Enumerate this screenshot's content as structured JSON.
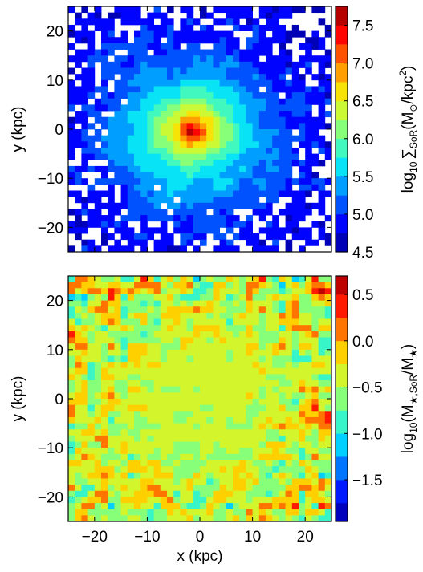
{
  "chart_data": [
    {
      "type": "heatmap",
      "panel": "top",
      "title": "",
      "xlabel": "",
      "ylabel": "y (kpc)",
      "xlim": [
        -25,
        25
      ],
      "ylim": [
        -25,
        25
      ],
      "xticks": [
        -20,
        -10,
        0,
        10,
        20
      ],
      "yticks": [
        -20,
        -10,
        0,
        10,
        20
      ],
      "ytick_labels": [
        "−20",
        "−10",
        "0",
        "10",
        "20"
      ],
      "grid": false,
      "field": {
        "description_values": "log10 surface density peak at center decreasing outward",
        "center": [
          -1.5,
          -0.5
        ],
        "peak_value": 7.7,
        "falloff_scale_kpc": 14,
        "floor_value": 4.6,
        "blank_below": 4.5
      },
      "colorbar": {
        "label_prefix": "log",
        "label_sub": "10",
        "label_sigma": "∑",
        "label_sigma_sub": "SoR",
        "label_units_open": "(M",
        "label_units_sun": "⊙",
        "label_units_mid": "/kpc",
        "label_units_sup": "2",
        "label_units_close": ")",
        "min": 4.5,
        "max": 7.75,
        "levels": [
          4.5,
          4.75,
          5.0,
          5.25,
          5.5,
          5.75,
          6.0,
          6.25,
          6.5,
          6.75,
          7.0,
          7.25,
          7.5,
          7.75
        ],
        "ticks": [
          4.5,
          5.0,
          5.5,
          6.0,
          6.5,
          7.0,
          7.5
        ],
        "tick_labels": [
          "4.5",
          "5.0",
          "5.5",
          "6.0",
          "6.5",
          "7.0",
          "7.5"
        ]
      }
    },
    {
      "type": "heatmap",
      "panel": "bottom",
      "title": "",
      "xlabel": "x (kpc)",
      "ylabel": "y (kpc)",
      "xlim": [
        -25,
        25
      ],
      "ylim": [
        -25,
        25
      ],
      "xticks": [
        -20,
        -10,
        0,
        10,
        20
      ],
      "xtick_labels": [
        "−20",
        "−10",
        "0",
        "10",
        "20"
      ],
      "yticks": [
        -20,
        -10,
        0,
        10,
        20
      ],
      "ytick_labels": [
        "−20",
        "−10",
        "0",
        "10",
        "20"
      ],
      "grid": false,
      "field": {
        "description_values": "log10 mass fraction roughly -0.4 in center, noisy toward edges",
        "central_value": -0.45,
        "mean_value": -0.3,
        "noise_amplitude_center": 0.1,
        "noise_amplitude_edge": 0.75
      },
      "colorbar": {
        "label_prefix": "log",
        "label_sub": "10",
        "label_open": "(M",
        "label_star_sub": "★,SoR",
        "label_mid": "/M",
        "label_star_sub2": "★",
        "label_close": ")",
        "min": -1.95,
        "max": 0.7,
        "levels": [
          -1.95,
          -1.75,
          -1.5,
          -1.25,
          -1.0,
          -0.75,
          -0.5,
          -0.25,
          0.0,
          0.25,
          0.5,
          0.7
        ],
        "ticks": [
          -1.5,
          -1.0,
          -0.5,
          0.0,
          0.5
        ],
        "tick_labels": [
          "−1.5",
          "−1.0",
          "−0.5",
          "0.0",
          "0.5"
        ]
      }
    }
  ],
  "colormap": {
    "name": "jet",
    "stops": [
      "#00008f",
      "#0000ff",
      "#0070ff",
      "#00dfff",
      "#50ffaf",
      "#bfff40",
      "#ffdf00",
      "#ff7000",
      "#ff0000",
      "#8f0000"
    ]
  }
}
